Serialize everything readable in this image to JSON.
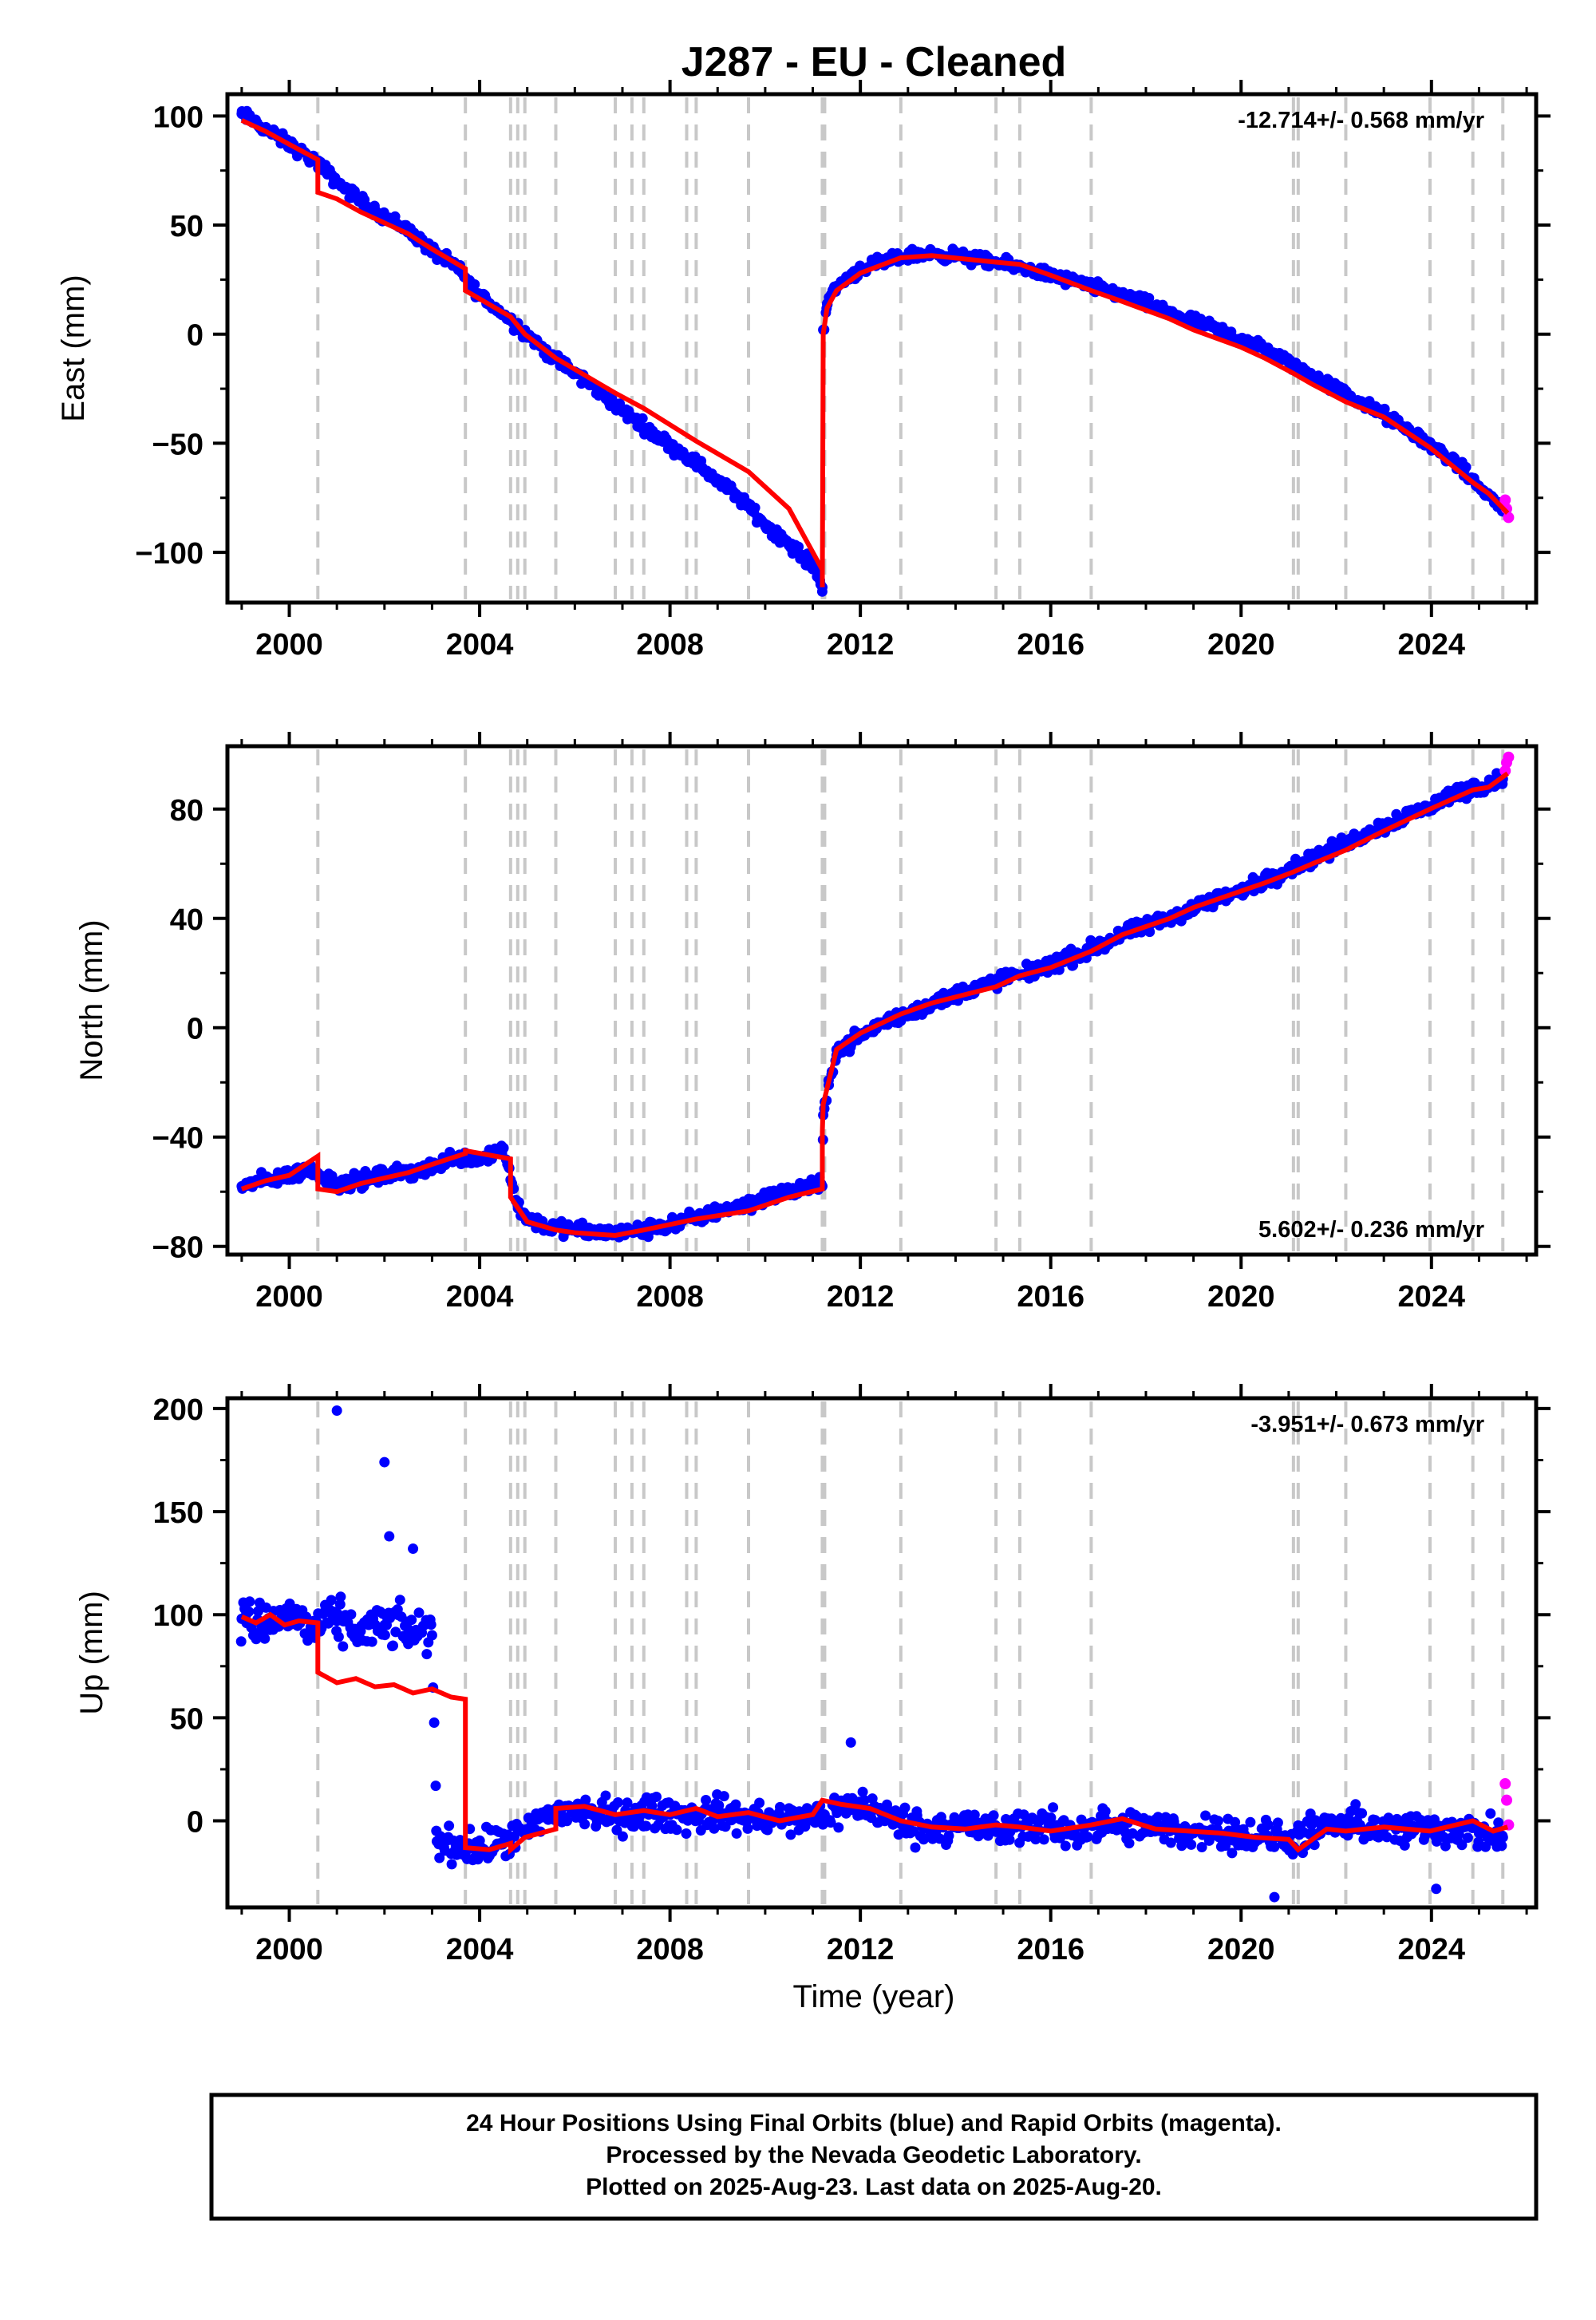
{
  "title": "J287  - EU - Cleaned",
  "colors": {
    "final": "#0000ff",
    "rapid": "#ff00ff",
    "model": "#ff0000",
    "steps": "#c8c8c8"
  },
  "footer": {
    "line1": "24 Hour Positions Using Final Orbits (blue) and Rapid Orbits (magenta).",
    "line2": "Processed by the Nevada Geodetic Laboratory.",
    "line3": "Plotted on 2025-Aug-23. Last data on 2025-Aug-20."
  },
  "chart_data": [
    {
      "type": "scatter",
      "title": "",
      "xlabel": "",
      "ylabel": "East (mm)",
      "rate_label": "-12.714+/- 0.568 mm/yr",
      "rate_position": "top-right",
      "xlim": [
        1998.7,
        2026.2
      ],
      "ylim": [
        -123,
        110
      ],
      "yticks": [
        100,
        50,
        0,
        -50,
        -100
      ],
      "xticks": [
        2000,
        2004,
        2008,
        2012,
        2016,
        2020,
        2024
      ],
      "xtick_labels": [
        "2000",
        "2004",
        "2008",
        "2012",
        "2016",
        "2020",
        "2024"
      ],
      "ytick_labels": [
        "100",
        "50",
        "0",
        "−50",
        "−100"
      ],
      "step_epochs": [
        2000.6,
        2003.7,
        2004.65,
        2004.8,
        2004.95,
        2005.6,
        2006.85,
        2007.2,
        2007.45,
        2008.35,
        2008.55,
        2009.65,
        2011.2,
        2011.25,
        2012.85,
        2014.85,
        2015.35,
        2016.85,
        2021.1,
        2021.2,
        2022.2,
        2023.97,
        2024.87,
        2025.5
      ],
      "series": [
        {
          "name": "final orbits",
          "x": [
            1999.0,
            1999.5,
            2000.0,
            2000.5,
            2000.6,
            2001.0,
            2001.5,
            2002.0,
            2002.5,
            2003.0,
            2003.5,
            2003.7,
            2004.0,
            2004.5,
            2005.0,
            2005.5,
            2006.0,
            2006.5,
            2007.0,
            2007.5,
            2008.0,
            2008.5,
            2009.0,
            2009.5,
            2010.0,
            2010.5,
            2011.0,
            2011.2,
            2011.22,
            2011.3,
            2011.5,
            2012.0,
            2012.5,
            2013.0,
            2013.5,
            2014.0,
            2014.5,
            2015.0,
            2015.5,
            2016.0,
            2016.5,
            2017.0,
            2017.5,
            2018.0,
            2018.5,
            2019.0,
            2019.5,
            2020.0,
            2020.5,
            2021.0,
            2021.5,
            2022.0,
            2022.5,
            2023.0,
            2023.5,
            2024.0,
            2024.5,
            2025.0,
            2025.5
          ],
          "y": [
            101,
            94,
            87,
            80,
            78,
            70,
            61,
            54,
            48,
            38,
            31,
            26,
            18,
            9,
            0,
            -10,
            -18,
            -26,
            -35,
            -43,
            -51,
            -58,
            -67,
            -76,
            -87,
            -96,
            -106,
            -116,
            2,
            14,
            22,
            30,
            33,
            36,
            37,
            36,
            34,
            32,
            30,
            27,
            24,
            21,
            18,
            14,
            10,
            6,
            2,
            -2,
            -7,
            -13,
            -19,
            -25,
            -31,
            -37,
            -44,
            -51,
            -59,
            -70,
            -80
          ]
        },
        {
          "name": "rapid orbits",
          "x": [
            2025.55,
            2025.58,
            2025.62
          ],
          "y": [
            -76,
            -80,
            -84
          ]
        },
        {
          "name": "model",
          "x": [
            1999.0,
            1999.5,
            2000.0,
            2000.6,
            2000.6,
            2001.0,
            2001.5,
            2002.0,
            2002.5,
            2003.0,
            2003.7,
            2003.7,
            2004.65,
            2004.95,
            2005.6,
            2006.85,
            2007.45,
            2008.55,
            2009.65,
            2010.5,
            2011.2,
            2011.2,
            2011.22,
            2011.3,
            2011.5,
            2012.0,
            2012.85,
            2013.5,
            2014.85,
            2015.35,
            2016.0,
            2016.85,
            2017.5,
            2018.0,
            2018.5,
            2019.0,
            2019.5,
            2020.0,
            2020.5,
            2021.1,
            2021.5,
            2022.2,
            2023.0,
            2023.97,
            2024.87,
            2025.2,
            2025.6
          ],
          "y": [
            98,
            93,
            87,
            80,
            65,
            62,
            56,
            51,
            46,
            39,
            30,
            20,
            8,
            0,
            -11,
            -27,
            -34,
            -49,
            -63,
            -80,
            -108,
            -116,
            0,
            12,
            20,
            28,
            35,
            36,
            33,
            32,
            27,
            20,
            15,
            11,
            7,
            2,
            -2,
            -6,
            -11,
            -18,
            -23,
            -31,
            -38,
            -52,
            -68,
            -73,
            -82
          ]
        }
      ]
    },
    {
      "type": "scatter",
      "title": "",
      "xlabel": "",
      "ylabel": "North (mm)",
      "rate_label": "5.602+/- 0.236 mm/yr",
      "rate_position": "bottom-right",
      "xlim": [
        1998.7,
        2026.2
      ],
      "ylim": [
        -83,
        103
      ],
      "yticks": [
        80,
        40,
        0,
        -40,
        -80
      ],
      "xticks": [
        2000,
        2004,
        2008,
        2012,
        2016,
        2020,
        2024
      ],
      "xtick_labels": [
        "2000",
        "2004",
        "2008",
        "2012",
        "2016",
        "2020",
        "2024"
      ],
      "ytick_labels": [
        "80",
        "40",
        "0",
        "−40",
        "−80"
      ],
      "step_epochs": [
        2000.6,
        2003.7,
        2004.65,
        2004.8,
        2004.95,
        2005.6,
        2006.85,
        2007.2,
        2007.45,
        2008.35,
        2008.55,
        2009.65,
        2011.2,
        2011.25,
        2012.85,
        2014.85,
        2015.35,
        2016.85,
        2021.1,
        2021.2,
        2022.2,
        2023.97,
        2024.87,
        2025.5
      ],
      "series": [
        {
          "name": "final orbits",
          "x": [
            1999.0,
            1999.5,
            2000.0,
            2000.5,
            2001.0,
            2001.5,
            2002.0,
            2002.5,
            2003.0,
            2003.5,
            2004.0,
            2004.5,
            2004.8,
            2005.0,
            2005.5,
            2006.0,
            2006.5,
            2007.0,
            2007.5,
            2008.0,
            2008.5,
            2009.0,
            2009.5,
            2010.0,
            2010.5,
            2011.0,
            2011.2,
            2011.22,
            2011.5,
            2012.0,
            2012.5,
            2013.0,
            2013.5,
            2014.0,
            2014.5,
            2015.0,
            2015.5,
            2016.0,
            2016.5,
            2017.0,
            2017.5,
            2018.0,
            2018.5,
            2019.0,
            2019.5,
            2020.0,
            2020.5,
            2021.0,
            2021.5,
            2022.0,
            2022.5,
            2023.0,
            2023.5,
            2024.0,
            2024.5,
            2025.0,
            2025.5
          ],
          "y": [
            -58,
            -56,
            -54,
            -52,
            -57,
            -56,
            -54,
            -53,
            -51,
            -47,
            -48,
            -44,
            -65,
            -70,
            -73,
            -74,
            -75,
            -75,
            -74,
            -72,
            -70,
            -67,
            -65,
            -62,
            -60,
            -58,
            -58,
            -32,
            -8,
            -3,
            2,
            5,
            9,
            12,
            15,
            18,
            20,
            23,
            26,
            30,
            34,
            37,
            40,
            44,
            47,
            50,
            54,
            58,
            62,
            66,
            70,
            74,
            78,
            81,
            86,
            88,
            91
          ]
        },
        {
          "name": "rapid orbits",
          "x": [
            2025.55,
            2025.58,
            2025.62
          ],
          "y": [
            94,
            97,
            99
          ]
        },
        {
          "name": "model",
          "x": [
            1999.0,
            1999.5,
            2000.0,
            2000.6,
            2000.6,
            2001.0,
            2001.5,
            2002.0,
            2002.5,
            2003.0,
            2003.7,
            2003.7,
            2004.65,
            2004.65,
            2005.0,
            2005.6,
            2006.0,
            2006.85,
            2007.45,
            2008.55,
            2009.65,
            2010.5,
            2011.2,
            2011.2,
            2011.22,
            2011.5,
            2012.0,
            2012.85,
            2013.5,
            2014.85,
            2015.35,
            2016.0,
            2016.85,
            2017.5,
            2018.0,
            2018.5,
            2019.0,
            2019.5,
            2020.0,
            2020.5,
            2021.1,
            2021.5,
            2022.2,
            2023.0,
            2023.97,
            2024.87,
            2025.2,
            2025.6
          ],
          "y": [
            -59,
            -56,
            -54,
            -47,
            -59,
            -60,
            -57,
            -55,
            -53,
            -50,
            -46,
            -45,
            -48,
            -62,
            -71,
            -74,
            -75,
            -76,
            -74,
            -70,
            -67,
            -62,
            -59,
            -38,
            -28,
            -8,
            -2,
            5,
            9,
            15,
            19,
            22,
            28,
            34,
            37,
            40,
            44,
            47,
            50,
            53,
            57,
            60,
            65,
            72,
            80,
            87,
            88,
            93
          ]
        }
      ]
    },
    {
      "type": "scatter",
      "title": "",
      "xlabel": "Time (year)",
      "ylabel": "Up (mm)",
      "rate_label": "-3.951+/- 0.673 mm/yr",
      "rate_position": "top-right",
      "xlim": [
        1998.7,
        2026.2
      ],
      "ylim": [
        -42,
        205
      ],
      "yticks": [
        200,
        150,
        100,
        50,
        0
      ],
      "xticks": [
        2000,
        2004,
        2008,
        2012,
        2016,
        2020,
        2024
      ],
      "xtick_labels": [
        "2000",
        "2004",
        "2008",
        "2012",
        "2016",
        "2020",
        "2024"
      ],
      "ytick_labels": [
        "200",
        "150",
        "100",
        "50",
        "0"
      ],
      "step_epochs": [
        2000.6,
        2003.7,
        2004.65,
        2004.8,
        2004.95,
        2005.6,
        2006.85,
        2007.2,
        2007.45,
        2008.35,
        2008.55,
        2009.65,
        2011.2,
        2011.25,
        2012.85,
        2014.85,
        2015.35,
        2016.85,
        2021.1,
        2021.2,
        2022.2,
        2023.97,
        2024.87,
        2025.5
      ],
      "series": [
        {
          "name": "final orbits",
          "x": [
            1999.0,
            1999.5,
            2000.0,
            2000.5,
            2001.0,
            2001.5,
            2002.0,
            2002.5,
            2003.0,
            2003.1,
            2003.5,
            2004.0,
            2004.5,
            2005.0,
            2005.5,
            2006.0,
            2006.5,
            2007.0,
            2007.5,
            2008.0,
            2008.5,
            2009.0,
            2009.5,
            2010.0,
            2010.5,
            2011.0,
            2011.5,
            2012.0,
            2012.5,
            2013.0,
            2013.5,
            2014.0,
            2014.5,
            2015.0,
            2015.5,
            2016.0,
            2016.5,
            2017.0,
            2017.5,
            2018.0,
            2018.5,
            2019.0,
            2019.5,
            2020.0,
            2020.5,
            2021.0,
            2021.5,
            2022.0,
            2022.5,
            2023.0,
            2023.5,
            2024.0,
            2024.5,
            2025.0,
            2025.5
          ],
          "y": [
            98,
            95,
            100,
            93,
            97,
            92,
            95,
            93,
            90,
            -10,
            -12,
            -14,
            -10,
            -6,
            4,
            5,
            3,
            2,
            4,
            3,
            2,
            4,
            2,
            1,
            0,
            2,
            5,
            8,
            3,
            -2,
            -4,
            -1,
            -3,
            -5,
            -2,
            -3,
            -6,
            -1,
            -4,
            -3,
            -5,
            -6,
            -4,
            -7,
            -8,
            -9,
            -6,
            -3,
            -2,
            -4,
            -5,
            -3,
            -4,
            -6,
            -8
          ]
        },
        {
          "name": "rapid orbits",
          "x": [
            2025.55,
            2025.58,
            2025.62
          ],
          "y": [
            18,
            10,
            -2
          ]
        },
        {
          "name": "model",
          "x": [
            1999.0,
            1999.3,
            1999.6,
            1999.9,
            2000.2,
            2000.6,
            2000.6,
            2001.0,
            2001.4,
            2001.8,
            2002.2,
            2002.6,
            2003.0,
            2003.4,
            2003.7,
            2003.7,
            2004.2,
            2004.65,
            2004.65,
            2004.95,
            2005.6,
            2005.6,
            2006.2,
            2006.85,
            2007.45,
            2008.0,
            2008.55,
            2009.0,
            2009.65,
            2010.3,
            2011.0,
            2011.2,
            2011.6,
            2012.2,
            2012.85,
            2013.5,
            2014.2,
            2014.85,
            2015.35,
            2016.0,
            2016.85,
            2017.5,
            2018.2,
            2018.9,
            2019.6,
            2020.3,
            2021.0,
            2021.2,
            2021.8,
            2022.2,
            2023.0,
            2023.97,
            2024.87,
            2025.3,
            2025.6
          ],
          "y": [
            99,
            96,
            100,
            95,
            97,
            96,
            72,
            67,
            69,
            65,
            66,
            62,
            64,
            60,
            59,
            -13,
            -14,
            -11,
            -14,
            -8,
            -4,
            6,
            7,
            3,
            5,
            3,
            6,
            2,
            4,
            0,
            3,
            10,
            8,
            6,
            0,
            -3,
            -4,
            -2,
            -3,
            -5,
            -2,
            1,
            -4,
            -5,
            -6,
            -8,
            -9,
            -14,
            -4,
            -5,
            -3,
            -5,
            0,
            -5,
            -3
          ]
        }
      ]
    }
  ]
}
